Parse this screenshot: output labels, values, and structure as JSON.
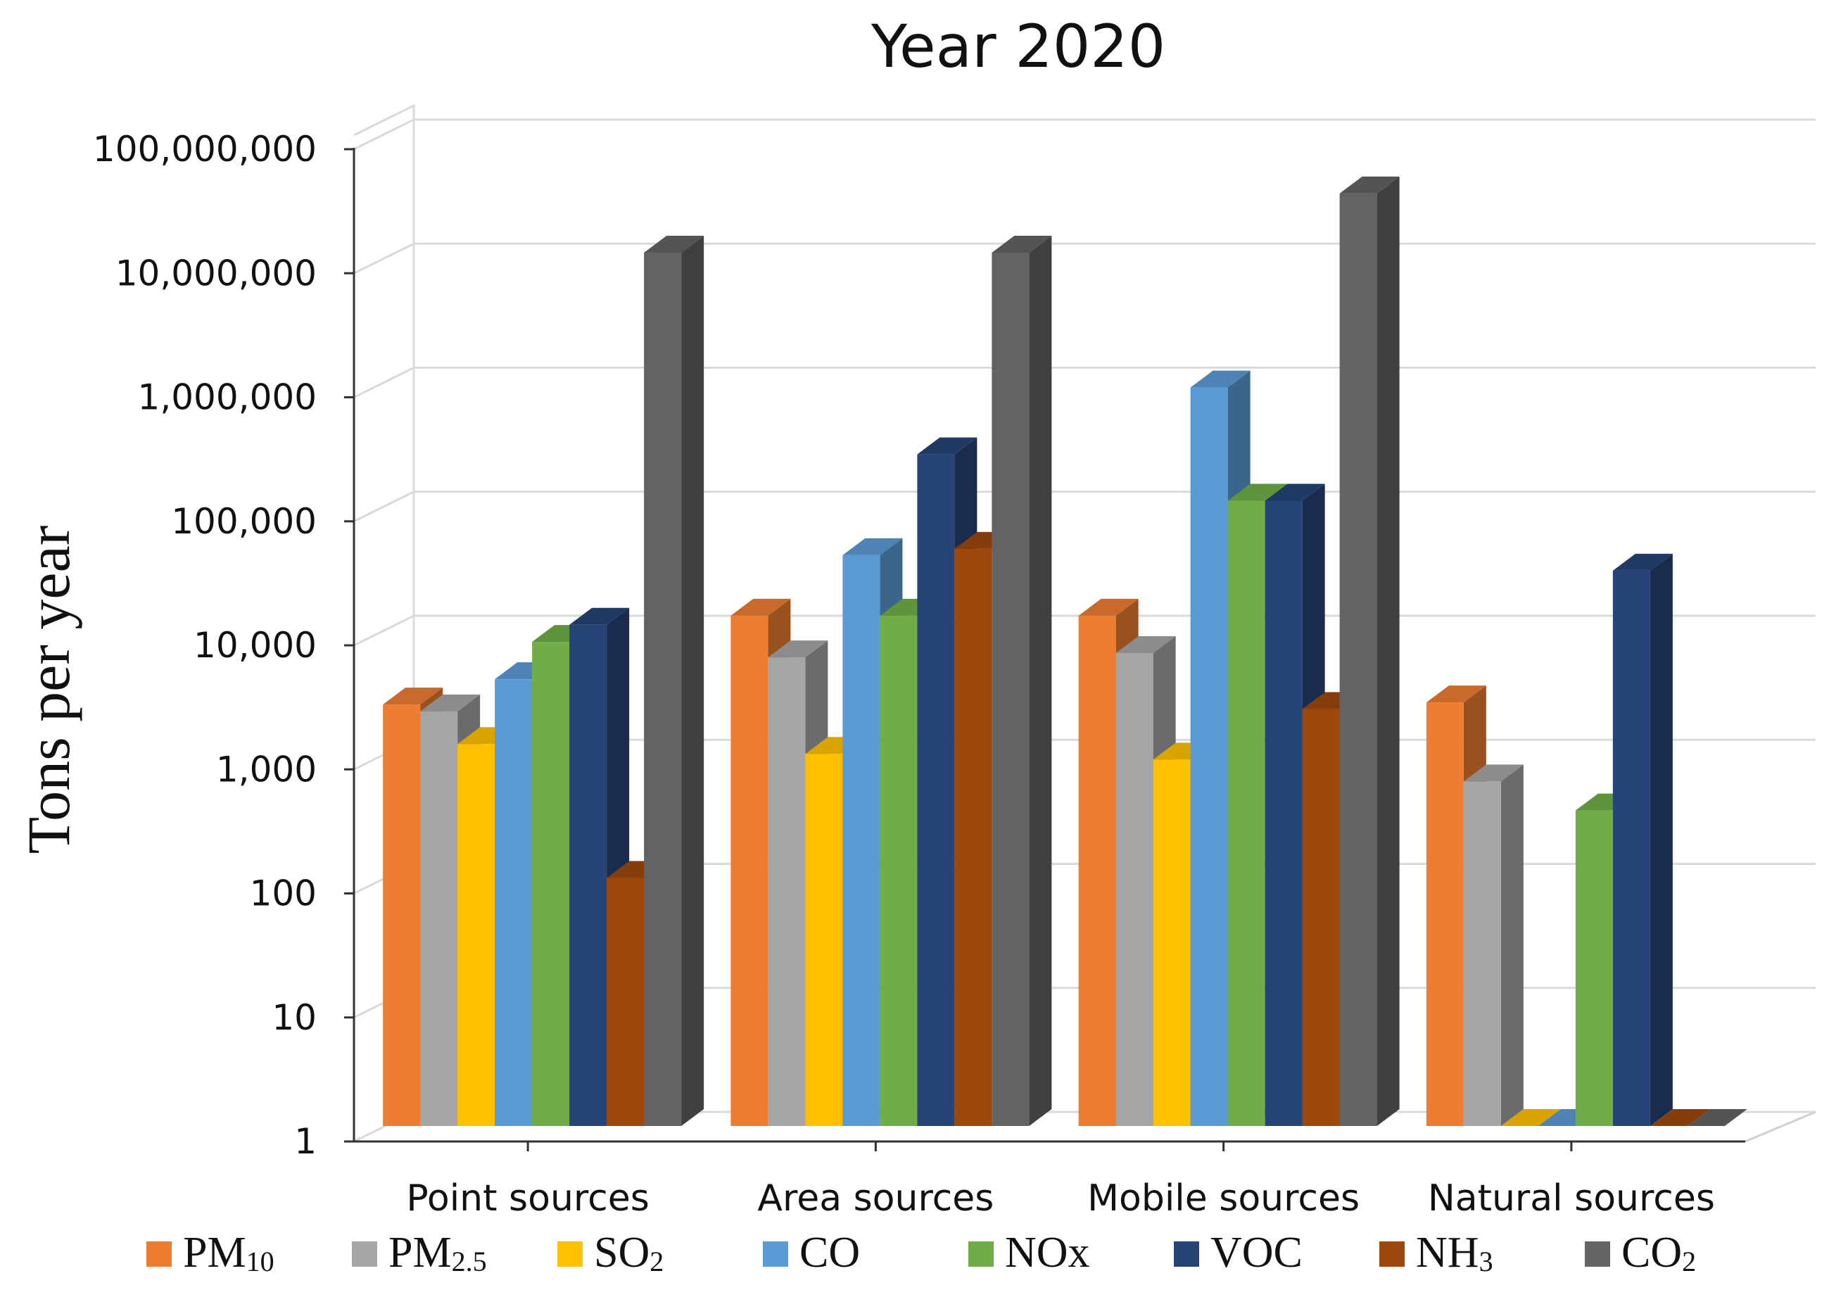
{
  "chart_data": {
    "type": "bar",
    "variant": "3d-clustered",
    "title": "Year 2020",
    "xlabel": "",
    "ylabel": "Tons per year",
    "yscale": "log",
    "ylim": [
      1,
      100000000
    ],
    "yticks": [
      {
        "value": 1,
        "label": "1"
      },
      {
        "value": 10,
        "label": "10"
      },
      {
        "value": 100,
        "label": "100"
      },
      {
        "value": 1000,
        "label": "1,000"
      },
      {
        "value": 10000,
        "label": "10,000"
      },
      {
        "value": 100000,
        "label": "100,000"
      },
      {
        "value": 1000000,
        "label": "1,000,000"
      },
      {
        "value": 10000000,
        "label": "10,000,000"
      },
      {
        "value": 100000000,
        "label": "100,000,000"
      }
    ],
    "grid": true,
    "legend_position": "bottom",
    "categories": [
      "Point sources",
      "Area sources",
      "Mobile sources",
      "Natural sources"
    ],
    "series": [
      {
        "name": "PM10",
        "label_main": "PM",
        "label_sub": "10",
        "color": "#ED7D31",
        "values": [
          2500,
          13000,
          13000,
          2600
        ]
      },
      {
        "name": "PM2.5",
        "label_main": "PM",
        "label_sub": "2.5",
        "color": "#A5A5A5",
        "values": [
          2200,
          6000,
          6500,
          600
        ]
      },
      {
        "name": "SO2",
        "label_main": "SO",
        "label_sub": "2",
        "color": "#FFC000",
        "values": [
          1200,
          1000,
          900,
          1
        ]
      },
      {
        "name": "CO",
        "label_main": "CO",
        "label_sub": "",
        "color": "#5B9BD5",
        "values": [
          4000,
          40000,
          900000,
          1
        ]
      },
      {
        "name": "NOx",
        "label_main": "NOx",
        "label_sub": "",
        "color": "#70AD47",
        "values": [
          8000,
          13000,
          110000,
          350
        ]
      },
      {
        "name": "VOC",
        "label_main": "VOC",
        "label_sub": "",
        "color": "#264478",
        "values": [
          11000,
          260000,
          110000,
          30000
        ]
      },
      {
        "name": "NH3",
        "label_main": "NH",
        "label_sub": "3",
        "color": "#9E480E",
        "values": [
          100,
          45000,
          2300,
          1
        ]
      },
      {
        "name": "CO2",
        "label_main": "CO",
        "label_sub": "2",
        "color": "#636363",
        "values": [
          11000000,
          11000000,
          33000000,
          1
        ]
      }
    ]
  }
}
